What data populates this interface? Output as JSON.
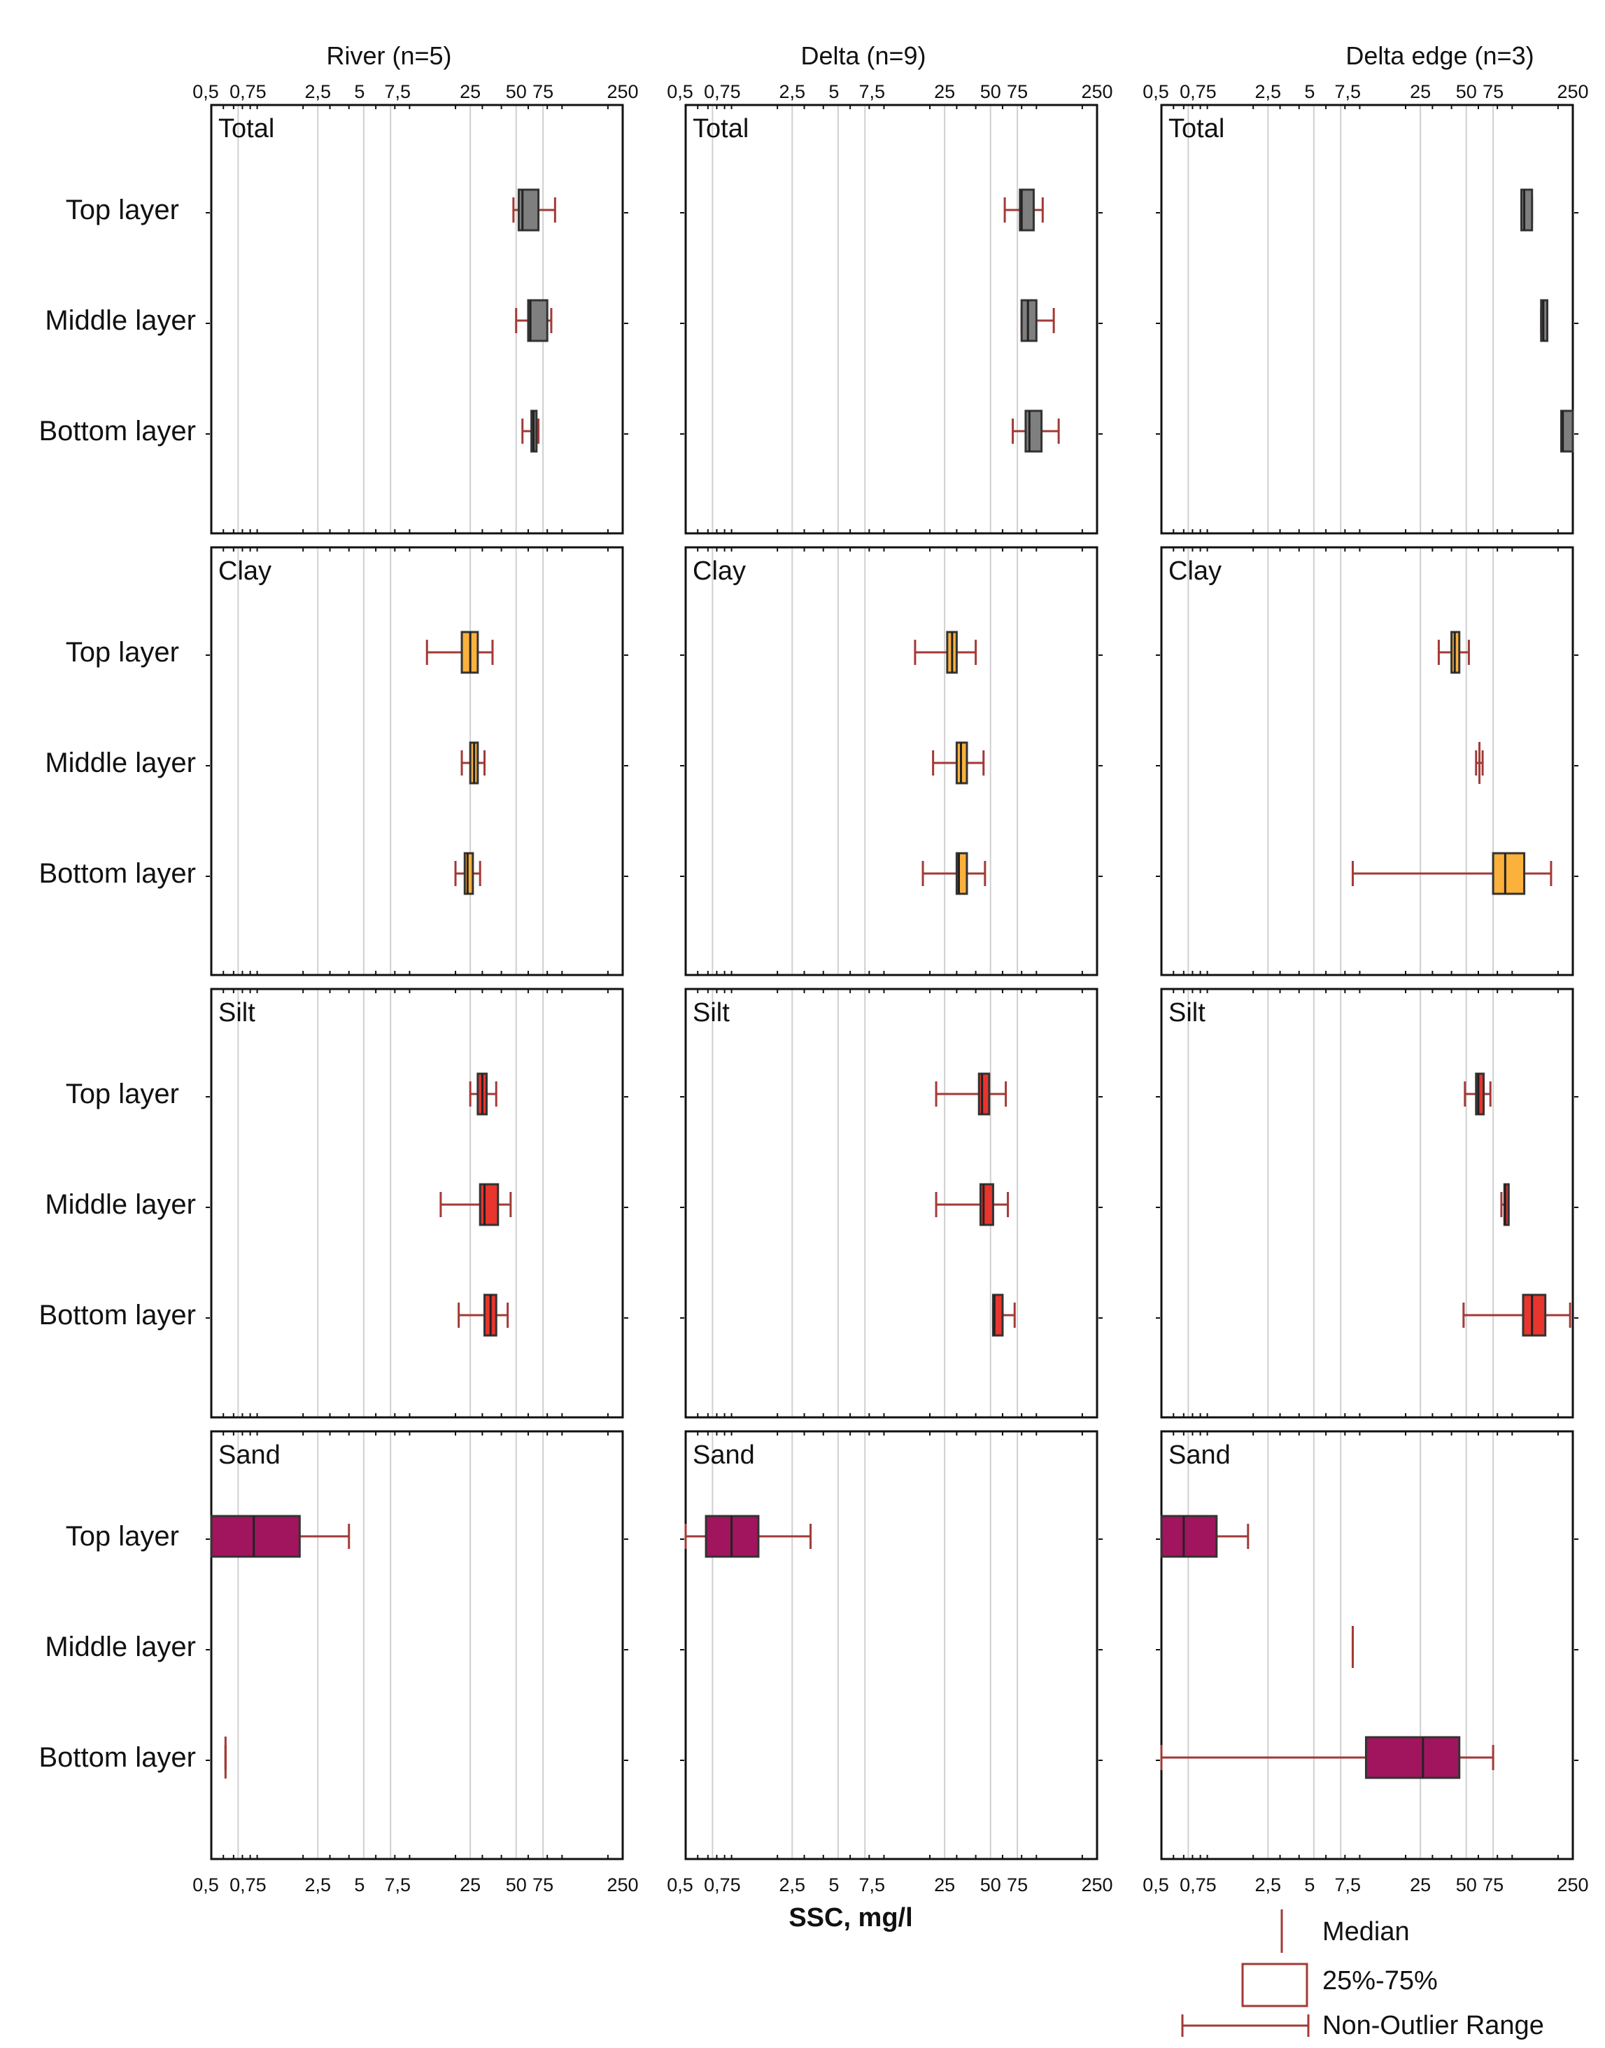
{
  "chart_data": {
    "type": "box",
    "xlabel": "SSC, mg/l",
    "xscale": "log",
    "xlim": [
      0.5,
      250
    ],
    "tick_values": [
      0.5,
      0.75,
      2.5,
      5,
      7.5,
      25,
      50,
      75,
      250
    ],
    "tick_labels": [
      "0,5",
      "0,75",
      "2,5",
      "5",
      "7,5",
      "25",
      "50",
      "75",
      "250"
    ],
    "columns": [
      {
        "title": "River (n=5)"
      },
      {
        "title": "Delta (n=9)"
      },
      {
        "title": "Delta edge (n=3)"
      }
    ],
    "rows": [
      {
        "title": "Total",
        "color": "#7f7f7f"
      },
      {
        "title": "Clay",
        "color": "#fbb13c"
      },
      {
        "title": "Silt",
        "color": "#e8352e"
      },
      {
        "title": "Sand",
        "color": "#a0155e"
      }
    ],
    "layers": [
      "Top layer",
      "Middle layer",
      "Bottom layer"
    ],
    "whisker_color": "#a23a36",
    "panels": [
      [
        [
          {
            "wmin": 48,
            "q1": 52,
            "median": 55,
            "q3": 70,
            "wmax": 90
          },
          {
            "wmin": 50,
            "q1": 60,
            "median": 62,
            "q3": 80,
            "wmax": 85
          },
          {
            "wmin": 55,
            "q1": 63,
            "median": 65,
            "q3": 68,
            "wmax": 70
          }
        ],
        [
          {
            "wmin": 13,
            "q1": 22,
            "median": 25,
            "q3": 28,
            "wmax": 35
          },
          {
            "wmin": 22,
            "q1": 25,
            "median": 26.5,
            "q3": 28,
            "wmax": 31
          },
          {
            "wmin": 20,
            "q1": 23,
            "median": 24,
            "q3": 26,
            "wmax": 29
          }
        ],
        [
          {
            "wmin": 25,
            "q1": 28,
            "median": 30,
            "q3": 32,
            "wmax": 37
          },
          {
            "wmin": 16,
            "q1": 29,
            "median": 31,
            "q3": 38,
            "wmax": 46
          },
          {
            "wmin": 21,
            "q1": 31,
            "median": 34,
            "q3": 37,
            "wmax": 44
          }
        ],
        [
          {
            "wmin": 0.5,
            "q1": 0.5,
            "median": 0.95,
            "q3": 1.9,
            "wmax": 4.0
          },
          null,
          {
            "wmin": 0.62,
            "q1": null,
            "median": 0.62,
            "q3": null,
            "wmax": 0.62
          }
        ]
      ],
      [
        [
          {
            "wmin": 62,
            "q1": 78,
            "median": 80,
            "q3": 96,
            "wmax": 110
          },
          {
            "wmin": 80,
            "q1": 80,
            "median": 88,
            "q3": 100,
            "wmax": 130
          },
          {
            "wmin": 70,
            "q1": 85,
            "median": 90,
            "q3": 108,
            "wmax": 140
          }
        ],
        [
          {
            "wmin": 16,
            "q1": 26,
            "median": 28,
            "q3": 30,
            "wmax": 40
          },
          {
            "wmin": 21,
            "q1": 30,
            "median": 32,
            "q3": 35,
            "wmax": 45
          },
          {
            "wmin": 18,
            "q1": 30,
            "median": 31,
            "q3": 35,
            "wmax": 46
          }
        ],
        [
          {
            "wmin": 22,
            "q1": 42,
            "median": 44,
            "q3": 49,
            "wmax": 63
          },
          {
            "wmin": 22,
            "q1": 43,
            "median": 45,
            "q3": 52,
            "wmax": 65
          },
          {
            "wmin": 52,
            "q1": 52,
            "median": 53,
            "q3": 60,
            "wmax": 72
          }
        ],
        [
          {
            "wmin": 0.5,
            "q1": 0.68,
            "median": 1.0,
            "q3": 1.5,
            "wmax": 3.3
          },
          null,
          null
        ]
      ],
      [
        [
          {
            "wmin": 115,
            "q1": 115,
            "median": 120,
            "q3": 135,
            "wmax": 135
          },
          {
            "wmin": 155,
            "q1": 155,
            "median": 160,
            "q3": 170,
            "wmax": 170
          },
          {
            "wmin": 210,
            "q1": 210,
            "median": 215,
            "q3": 260,
            "wmax": 260
          }
        ],
        [
          {
            "wmin": 33,
            "q1": 40,
            "median": 42,
            "q3": 45,
            "wmax": 52
          },
          {
            "wmin": 58,
            "q1": null,
            "median": 61,
            "q3": null,
            "wmax": 64
          },
          {
            "wmin": 9,
            "q1": 75,
            "median": 90,
            "q3": 120,
            "wmax": 180
          }
        ],
        [
          {
            "wmin": 49,
            "q1": 58,
            "median": 60,
            "q3": 65,
            "wmax": 72
          },
          {
            "wmin": 85,
            "q1": 89,
            "median": 90,
            "q3": 93,
            "wmax": 93
          },
          {
            "wmin": 48,
            "q1": 118,
            "median": 135,
            "q3": 165,
            "wmax": 240
          }
        ],
        [
          {
            "wmin": 0.5,
            "q1": 0.5,
            "median": 0.7,
            "q3": 1.15,
            "wmax": 1.85
          },
          {
            "wmin": 9,
            "q1": null,
            "median": 9,
            "q3": null,
            "wmax": 9
          },
          {
            "wmin": 0.5,
            "q1": 11,
            "median": 26,
            "q3": 45,
            "wmax": 75
          }
        ]
      ]
    ],
    "legend": {
      "position": "bottom-right",
      "items": [
        "Median",
        "25%-75%",
        "Non-Outlier Range"
      ]
    }
  }
}
